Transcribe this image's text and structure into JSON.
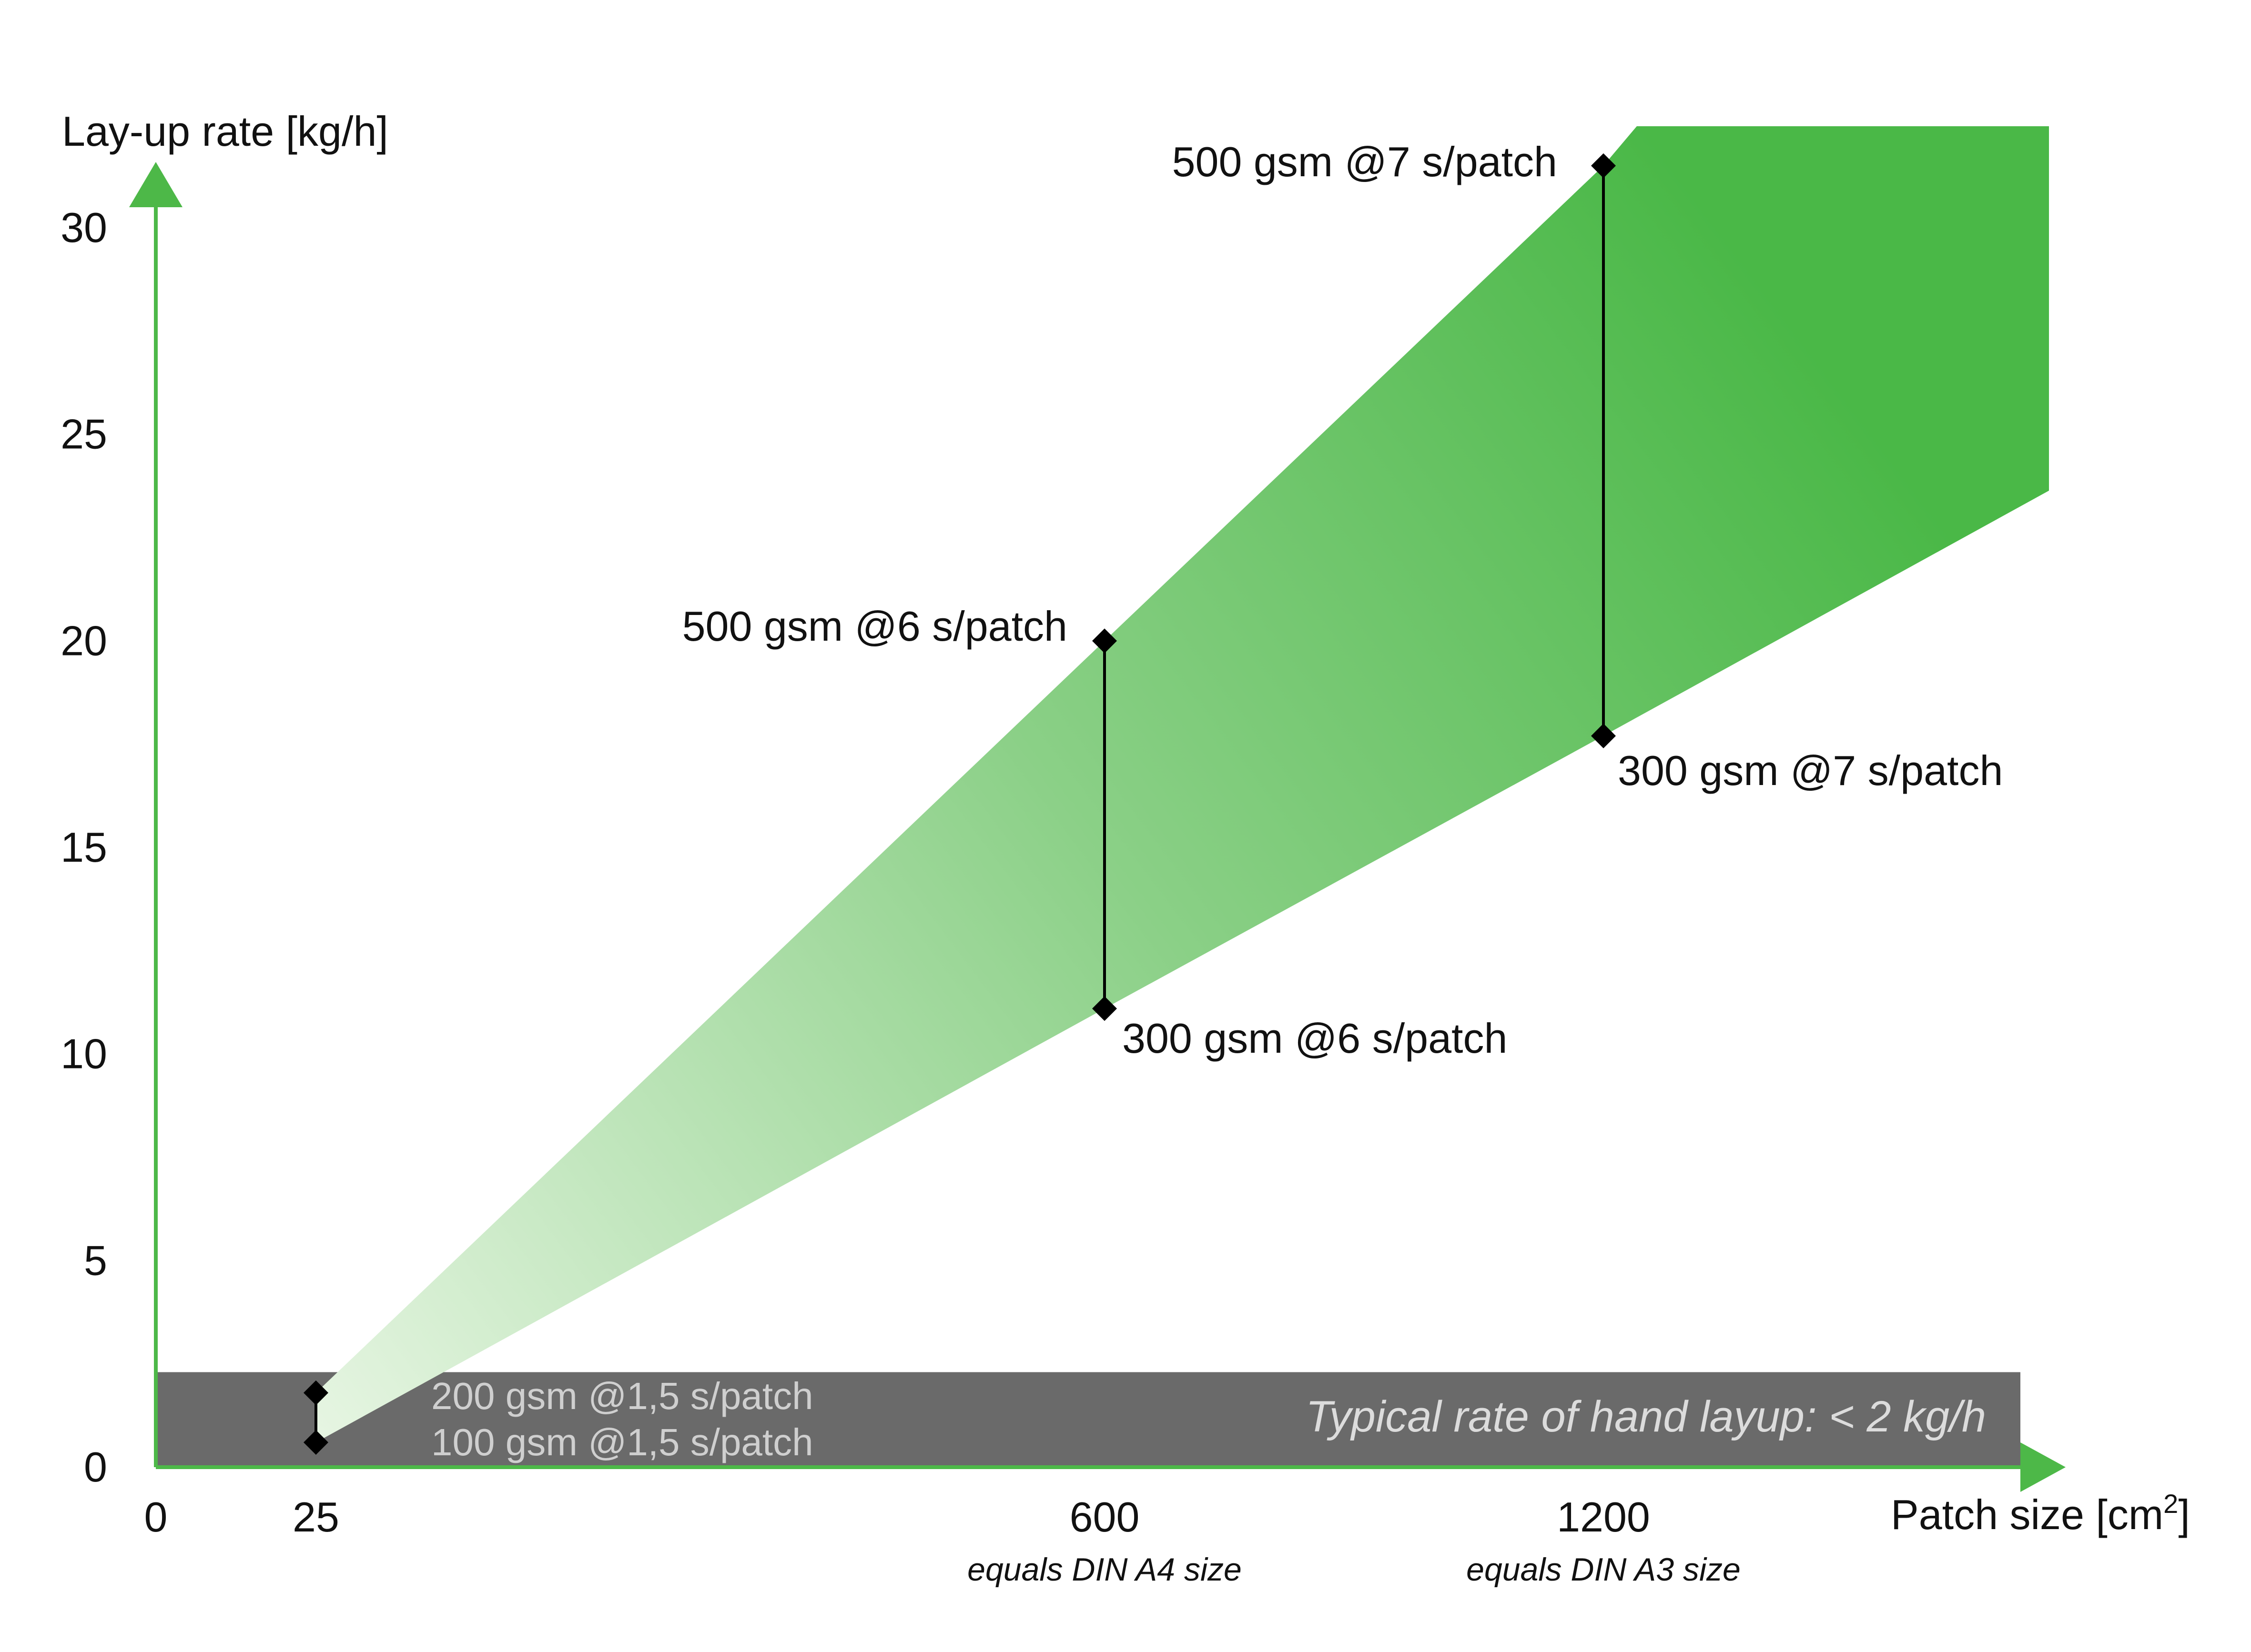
{
  "colors": {
    "axis": "#4db848",
    "area_light": "#e6f5e2",
    "area_mid": "#8bd087",
    "area_dark": "#4ab847",
    "band": "#6a6a6a",
    "marker": "#000000"
  },
  "chart_data": {
    "type": "area",
    "ylabel": "Lay-up rate [kg/h]",
    "xlabel_main": "Patch size [cm",
    "xlabel_sup": "2",
    "xlabel_end": "]",
    "ylim": [
      0,
      30
    ],
    "y_ticks": [
      "0",
      "5",
      "10",
      "15",
      "20",
      "25",
      "30"
    ],
    "x_ticks": [
      {
        "value": 0,
        "label": "0",
        "note": ""
      },
      {
        "value": 25,
        "label": "25",
        "note": ""
      },
      {
        "value": 600,
        "label": "600",
        "note": "equals DIN A4 size"
      },
      {
        "value": 1200,
        "label": "1200",
        "note": "equals DIN A3 size"
      }
    ],
    "upper_boundary": [
      [
        25,
        1.8
      ],
      [
        600,
        20
      ],
      [
        1200,
        31.5
      ]
    ],
    "lower_boundary": [
      [
        25,
        0.6
      ],
      [
        600,
        11.1
      ],
      [
        1200,
        17.7
      ]
    ],
    "points": [
      {
        "x": 25,
        "y": 1.8,
        "label": "200 gsm @1,5 s/patch"
      },
      {
        "x": 25,
        "y": 0.6,
        "label": "100 gsm @1,5 s/patch"
      },
      {
        "x": 600,
        "y": 20,
        "label": "500 gsm @6 s/patch"
      },
      {
        "x": 600,
        "y": 11.1,
        "label": "300 gsm @6 s/patch"
      },
      {
        "x": 1200,
        "y": 31.5,
        "label": "500 gsm @7 s/patch"
      },
      {
        "x": 1200,
        "y": 17.7,
        "label": "300 gsm @7 s/patch"
      }
    ],
    "hand_layup_band": {
      "from": 0,
      "to": 2.3,
      "label": "Typical rate of hand layup: < 2 kg/h"
    }
  }
}
